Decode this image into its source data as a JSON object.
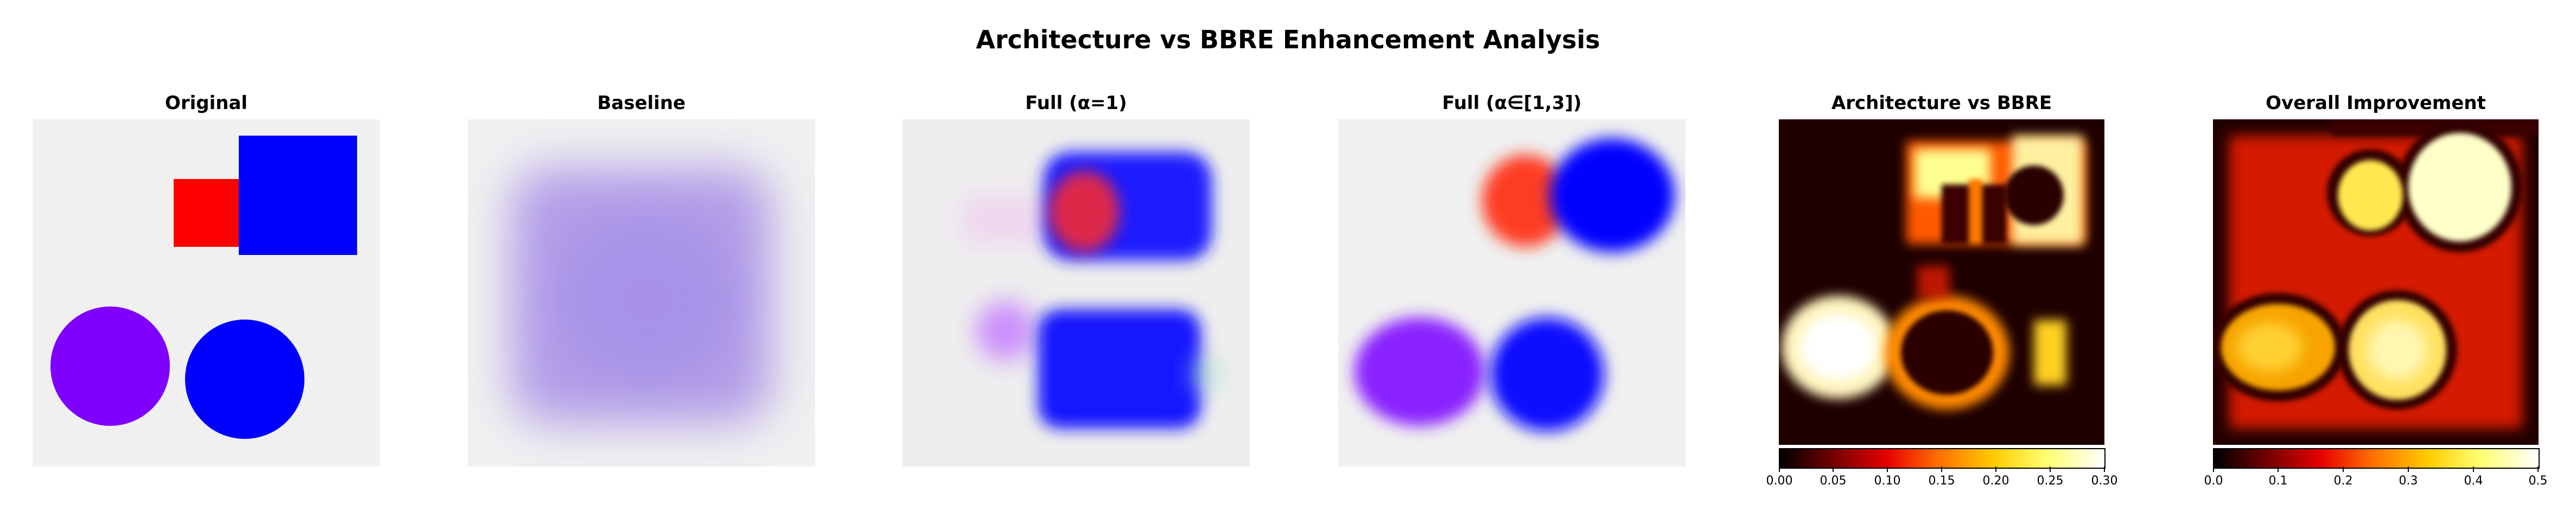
{
  "figure": {
    "title": "Architecture vs BBRE Enhancement Analysis"
  },
  "panels": [
    {
      "title": "Original"
    },
    {
      "title": "Baseline"
    },
    {
      "title": "Full (α=1)"
    },
    {
      "title": "Full (α∈[1,3])"
    },
    {
      "title": "Architecture vs BBRE"
    },
    {
      "title": "Overall Improvement"
    }
  ],
  "colorbars": {
    "architecture_vs_bbre": {
      "colormap": "hot",
      "range": [
        0,
        0.3
      ],
      "ticks": [
        "0.00",
        "0.05",
        "0.10",
        "0.15",
        "0.20",
        "0.25",
        "0.30"
      ]
    },
    "overall_improvement": {
      "colormap": "hot",
      "range": [
        0,
        0.5
      ],
      "ticks": [
        "0.0",
        "0.1",
        "0.2",
        "0.3",
        "0.4",
        "0.5"
      ]
    }
  },
  "colors": {
    "background": "#f0f0f0",
    "red": "#ff0000",
    "blue": "#0000ff",
    "purple": "#8000ff"
  }
}
